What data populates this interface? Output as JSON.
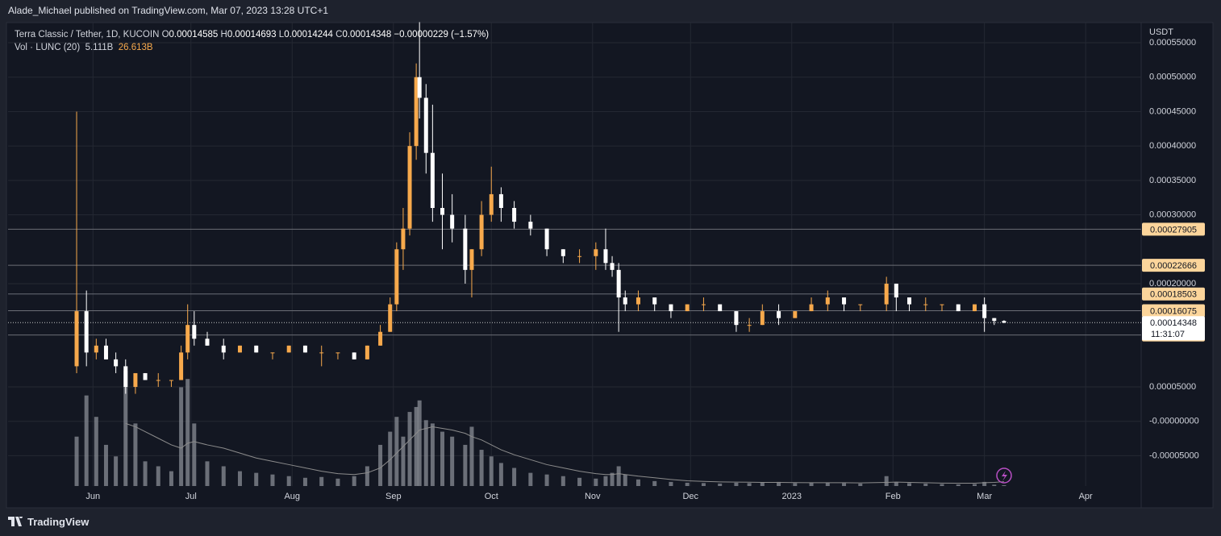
{
  "header": {
    "publisher": "Alade_Michael published on TradingView.com, Mar 07, 2023 13:28 UTC+1"
  },
  "footer": {
    "brand": "TradingView"
  },
  "chart_data": {
    "type": "candlestick",
    "title": "Terra Classic / Tether, 1D, KUCOIN",
    "ohlc": {
      "labels": [
        "O",
        "H",
        "L",
        "C"
      ],
      "values": [
        0.00014585,
        0.00014693,
        0.00014244,
        0.00014348
      ]
    },
    "change": {
      "value": -2.29e-06,
      "label": "−0.00000229"
    },
    "change_percent": {
      "value": -1.57,
      "label": "(−1.57%)"
    },
    "volume_title": "Vol · LUNC (20)",
    "volume_last": {
      "value": 5.111,
      "label": "5.111B"
    },
    "volume_ma_last": {
      "value": 26.613,
      "label": "26.613B"
    },
    "y_unit": "USDT",
    "x": [
      -5,
      -2,
      1,
      4,
      7,
      10,
      13,
      16,
      20,
      24,
      27,
      29,
      31,
      35,
      40,
      45,
      50,
      55,
      60,
      65,
      70,
      75,
      80,
      84,
      88,
      91,
      93,
      95,
      97,
      99,
      100,
      102,
      104,
      107,
      110,
      114,
      116,
      119,
      122,
      125,
      129,
      134,
      139,
      144,
      149,
      154,
      157,
      159,
      161,
      163,
      167,
      172,
      177,
      182,
      187,
      192,
      197,
      201,
      205,
      210,
      215,
      220,
      225,
      230,
      235,
      243,
      246,
      250,
      255,
      260,
      265,
      270,
      273,
      276,
      279
    ],
    "open": [
      8e-05,
      0.00016,
      0.0001,
      0.00011,
      9e-05,
      8e-05,
      5e-05,
      7e-05,
      6e-05,
      6e-05,
      6e-05,
      0.0001,
      0.00014,
      0.00012,
      0.00011,
      0.0001,
      0.00011,
      0.0001,
      0.0001,
      0.00011,
      0.0001,
      0.0001,
      0.0001,
      9e-05,
      0.00011,
      0.00013,
      0.00017,
      0.00025,
      0.00028,
      0.0004,
      0.0005,
      0.00047,
      0.00039,
      0.00031,
      0.0003,
      0.00028,
      0.00022,
      0.00025,
      0.0003,
      0.00033,
      0.00031,
      0.00029,
      0.00028,
      0.00025,
      0.00024,
      0.00024,
      0.00025,
      0.00023,
      0.00022,
      0.00018,
      0.00017,
      0.00018,
      0.00017,
      0.00016,
      0.00017,
      0.00017,
      0.00016,
      0.00014,
      0.00014,
      0.00016,
      0.00015,
      0.00016,
      0.00017,
      0.00018,
      0.00017,
      0.00017,
      0.0002,
      0.00018,
      0.00017,
      0.00017,
      0.00017,
      0.00016,
      0.00017,
      0.00015,
      0.00014585
    ],
    "high": [
      0.00045,
      0.00019,
      0.00012,
      0.00012,
      0.0001,
      9e-05,
      7e-05,
      7e-05,
      7e-05,
      6e-05,
      0.00011,
      0.00017,
      0.00016,
      0.00013,
      0.00012,
      0.00011,
      0.00011,
      0.0001,
      0.00011,
      0.00011,
      0.00011,
      0.0001,
      0.0001,
      0.00011,
      0.00014,
      0.00018,
      0.00026,
      0.00031,
      0.00042,
      0.00052,
      0.00058,
      0.00049,
      0.00046,
      0.00036,
      0.00033,
      0.0003,
      0.00025,
      0.00032,
      0.00037,
      0.00034,
      0.00032,
      0.0003,
      0.00028,
      0.00025,
      0.00025,
      0.00026,
      0.00028,
      0.00024,
      0.00023,
      0.00019,
      0.00019,
      0.00018,
      0.00017,
      0.00017,
      0.00018,
      0.00017,
      0.00016,
      0.00015,
      0.00017,
      0.00017,
      0.00016,
      0.00018,
      0.00019,
      0.00018,
      0.00017,
      0.00021,
      0.0002,
      0.00018,
      0.00018,
      0.00017,
      0.00017,
      0.00017,
      0.00018,
      0.00015,
      0.00014693
    ],
    "low": [
      7e-05,
      8e-05,
      9e-05,
      9e-05,
      7e-05,
      4e-05,
      4e-05,
      6e-05,
      5e-05,
      5e-05,
      6e-05,
      9e-05,
      0.00011,
      0.00011,
      9e-05,
      0.0001,
      0.0001,
      9e-05,
      0.0001,
      0.0001,
      8e-05,
      9e-05,
      9e-05,
      9e-05,
      0.00011,
      0.00013,
      0.00016,
      0.00022,
      0.00027,
      0.00038,
      0.00044,
      0.00036,
      0.00029,
      0.00025,
      0.00026,
      0.0002,
      0.00018,
      0.00024,
      0.00029,
      0.00029,
      0.00028,
      0.00027,
      0.00024,
      0.00023,
      0.00023,
      0.00022,
      0.00022,
      0.00021,
      0.00013,
      0.00016,
      0.00016,
      0.00016,
      0.00015,
      0.00016,
      0.00016,
      0.00016,
      0.00013,
      0.00013,
      0.00014,
      0.00014,
      0.00015,
      0.00016,
      0.00016,
      0.00016,
      0.00016,
      0.00016,
      0.00016,
      0.00016,
      0.00016,
      0.00016,
      0.00016,
      0.00016,
      0.00013,
      0.00014,
      0.00014244
    ],
    "close": [
      0.00016,
      0.0001,
      0.00011,
      9e-05,
      8e-05,
      5e-05,
      7e-05,
      6e-05,
      6e-05,
      6e-05,
      0.0001,
      0.00014,
      0.00012,
      0.00011,
      0.0001,
      0.00011,
      0.0001,
      0.0001,
      0.00011,
      0.0001,
      0.0001,
      0.0001,
      9e-05,
      0.00011,
      0.00013,
      0.00017,
      0.00025,
      0.00028,
      0.0004,
      0.0005,
      0.00047,
      0.00039,
      0.00031,
      0.0003,
      0.00028,
      0.00022,
      0.00025,
      0.0003,
      0.00033,
      0.00031,
      0.00029,
      0.00028,
      0.00025,
      0.00024,
      0.00024,
      0.00025,
      0.00023,
      0.00022,
      0.00018,
      0.00017,
      0.00018,
      0.00017,
      0.00016,
      0.00017,
      0.00017,
      0.00016,
      0.00014,
      0.00014,
      0.00016,
      0.00015,
      0.00016,
      0.00017,
      0.00018,
      0.00017,
      0.00017,
      0.0002,
      0.00018,
      0.00017,
      0.00017,
      0.00017,
      0.00016,
      0.00017,
      0.00015,
      0.00014585,
      0.00014348
    ],
    "volume": [
      300,
      550,
      420,
      250,
      180,
      700,
      380,
      150,
      120,
      90,
      600,
      650,
      380,
      150,
      120,
      90,
      80,
      70,
      60,
      50,
      55,
      45,
      60,
      120,
      250,
      330,
      420,
      300,
      450,
      480,
      520,
      400,
      380,
      330,
      300,
      250,
      360,
      220,
      180,
      140,
      110,
      80,
      70,
      60,
      50,
      45,
      60,
      80,
      120,
      70,
      40,
      30,
      25,
      20,
      18,
      15,
      20,
      18,
      22,
      25,
      18,
      20,
      22,
      18,
      15,
      60,
      25,
      18,
      15,
      12,
      10,
      12,
      25,
      8,
      5.111
    ],
    "volume_ma": [
      null,
      null,
      null,
      null,
      null,
      380,
      360,
      330,
      290,
      250,
      230,
      260,
      270,
      250,
      230,
      200,
      170,
      150,
      130,
      110,
      90,
      75,
      70,
      80,
      110,
      160,
      200,
      240,
      280,
      320,
      340,
      350,
      360,
      350,
      340,
      320,
      300,
      280,
      250,
      220,
      190,
      160,
      130,
      110,
      90,
      75,
      70,
      70,
      75,
      70,
      60,
      50,
      40,
      32,
      28,
      25,
      24,
      23,
      22,
      22,
      21,
      20,
      20,
      20,
      19,
      22,
      24,
      22,
      20,
      18,
      17,
      17,
      20,
      22,
      26.613
    ],
    "up_color": "#f7a94c",
    "down_color": "#ffffff",
    "volume_color": "#8a8d96",
    "ma_color": "#8c8c8c",
    "xlim": [
      -26,
      321
    ],
    "xticks": [
      {
        "value": 0,
        "label": "Jun"
      },
      {
        "value": 30,
        "label": "Jul"
      },
      {
        "value": 61,
        "label": "Aug"
      },
      {
        "value": 92,
        "label": "Sep"
      },
      {
        "value": 122,
        "label": "Oct"
      },
      {
        "value": 153,
        "label": "Nov"
      },
      {
        "value": 183,
        "label": "Dec"
      },
      {
        "value": 214,
        "label": "2023"
      },
      {
        "value": 245,
        "label": "Feb"
      },
      {
        "value": 273,
        "label": "Mar"
      },
      {
        "value": 304,
        "label": "Apr"
      }
    ],
    "ylim": [
      -9.4e-05,
      0.000577
    ],
    "yticks": [
      {
        "value": 0.00055,
        "label": "0.00055000"
      },
      {
        "value": 0.0005,
        "label": "0.00050000"
      },
      {
        "value": 0.00045,
        "label": "0.00045000"
      },
      {
        "value": 0.0004,
        "label": "0.00040000"
      },
      {
        "value": 0.00035,
        "label": "0.00035000"
      },
      {
        "value": 0.0003,
        "label": "0.00030000"
      },
      {
        "value": 0.0002,
        "label": "0.00020000"
      },
      {
        "value": 5e-05,
        "label": "0.00005000"
      },
      {
        "value": 0,
        "label": "-0.00000000"
      },
      {
        "value": -5e-05,
        "label": "-0.00005000"
      }
    ],
    "grid": true,
    "levels": {
      "values": [
        0.00027905,
        0.00022666,
        0.00018503,
        0.00016075,
        0.00012537
      ],
      "color": "#fcd59b"
    },
    "last_price": 0.00014348,
    "countdown": "11:31:07"
  }
}
